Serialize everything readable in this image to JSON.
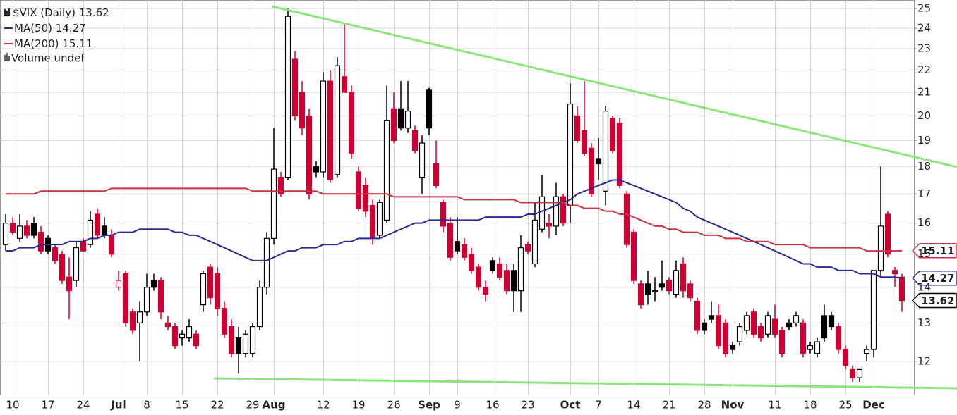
{
  "chart_data": {
    "type": "candlestick",
    "title": "$VIX (Daily)",
    "categories": [
      null,
      "10",
      null,
      null,
      null,
      null,
      "17",
      null,
      null,
      null,
      null,
      "24",
      null,
      null,
      null,
      null,
      "Jul",
      null,
      null,
      null,
      "8",
      null,
      null,
      null,
      null,
      "15",
      null,
      null,
      null,
      null,
      "22",
      null,
      null,
      null,
      null,
      "29",
      null,
      null,
      "Aug",
      null,
      null,
      null,
      null,
      null,
      null,
      "12",
      null,
      null,
      null,
      null,
      "19",
      null,
      null,
      null,
      null,
      "26",
      null,
      null,
      null,
      null,
      "Sep",
      null,
      null,
      null,
      "9",
      null,
      null,
      null,
      null,
      "16",
      null,
      null,
      null,
      null,
      "23",
      null,
      null,
      null,
      null,
      null,
      "Oct",
      null,
      null,
      null,
      "7",
      null,
      null,
      null,
      null,
      "14",
      null,
      null,
      null,
      null,
      "21",
      null,
      null,
      null,
      null,
      "28",
      null,
      null,
      null,
      "Nov",
      null,
      null,
      null,
      null,
      null,
      "11",
      null,
      null,
      null,
      null,
      "18",
      null,
      null,
      null,
      null,
      "25",
      null,
      null,
      null,
      "Dec",
      null,
      null,
      null,
      null
    ],
    "open": [
      15.3,
      16.0,
      15.5,
      15.9,
      16.0,
      15.7,
      15.5,
      15.2,
      15.0,
      14.3,
      14.2,
      15.4,
      15.3,
      16.3,
      15.9,
      15.6,
      14.0,
      14.4,
      13.3,
      13.0,
      13.3,
      14.2,
      14.2,
      13.0,
      12.9,
      12.6,
      12.6,
      12.7,
      13.5,
      14.6,
      14.4,
      13.4,
      12.9,
      12.6,
      12.2,
      12.2,
      12.9,
      14.0,
      15.5,
      17.6,
      17.6,
      22.5,
      21.0,
      20.0,
      18.0,
      17.8,
      21.5,
      17.7,
      21.7,
      21.0,
      17.8,
      17.3,
      16.6,
      15.6,
      16.1,
      20.3,
      20.3,
      19.5,
      19.4,
      17.6,
      21.1,
      18.1,
      16.7,
      16.0,
      15.4,
      15.3,
      15.0,
      14.6,
      14.0,
      14.8,
      14.7,
      14.5,
      14.5,
      13.9,
      15.3,
      14.7,
      15.8,
      16.0,
      15.9,
      16.9,
      16.6,
      20.0,
      19.4,
      18.7,
      18.3,
      17.1,
      19.9,
      19.7,
      17.0,
      15.7,
      14.1,
      14.1,
      13.9,
      14.1,
      14.2,
      13.8,
      14.7,
      14.1,
      13.6,
      13.0,
      13.2,
      13.2,
      13.0,
      12.4,
      12.5,
      12.8,
      13.3,
      12.9,
      12.7,
      13.1,
      12.8,
      13.0,
      13.0,
      13.0,
      12.3,
      12.2,
      13.2,
      13.2,
      12.9,
      12.3,
      11.8,
      11.6,
      12.2,
      12.3,
      14.5,
      16.3,
      14.5,
      14.3
    ],
    "high": [
      16.3,
      16.2,
      16.3,
      16.1,
      16.2,
      15.9,
      15.6,
      15.3,
      15.1,
      14.9,
      15.4,
      15.5,
      16.4,
      16.5,
      16.2,
      15.8,
      14.5,
      14.5,
      13.4,
      13.6,
      14.4,
      14.4,
      14.3,
      13.2,
      13.0,
      12.8,
      13.1,
      12.8,
      14.5,
      14.7,
      14.6,
      13.6,
      13.1,
      12.9,
      12.8,
      13.0,
      14.2,
      15.7,
      19.5,
      17.8,
      25.0,
      22.9,
      21.5,
      20.3,
      18.2,
      21.9,
      22.0,
      22.6,
      24.2,
      21.3,
      18.0,
      17.6,
      16.8,
      16.8,
      21.3,
      21.0,
      21.5,
      21.5,
      19.6,
      19.2,
      21.2,
      19.0,
      16.8,
      16.2,
      16.2,
      15.5,
      15.2,
      14.7,
      14.2,
      14.9,
      14.9,
      14.7,
      14.7,
      15.6,
      15.4,
      16.7,
      17.7,
      16.3,
      17.4,
      17.0,
      21.4,
      20.4,
      21.5,
      18.9,
      19.1,
      20.4,
      20.0,
      19.9,
      17.1,
      15.8,
      14.2,
      14.5,
      14.3,
      14.8,
      14.3,
      14.8,
      14.9,
      14.2,
      13.7,
      13.1,
      13.6,
      13.5,
      13.1,
      12.5,
      13.0,
      13.3,
      13.4,
      13.0,
      13.3,
      13.5,
      12.9,
      13.1,
      13.3,
      13.1,
      12.5,
      12.6,
      13.5,
      13.3,
      13.0,
      12.4,
      11.9,
      11.8,
      12.4,
      14.5,
      18.0,
      16.4,
      14.6,
      14.4
    ],
    "low": [
      15.1,
      15.6,
      15.4,
      15.5,
      15.5,
      15.0,
      15.0,
      14.7,
      14.1,
      13.1,
      14.0,
      15.1,
      15.2,
      15.5,
      15.5,
      14.9,
      13.9,
      12.9,
      12.7,
      12.0,
      13.2,
      13.9,
      13.1,
      12.8,
      12.3,
      12.4,
      12.5,
      12.3,
      13.3,
      13.5,
      13.2,
      12.6,
      12.1,
      11.7,
      12.1,
      12.1,
      12.8,
      13.8,
      15.3,
      16.9,
      17.5,
      19.8,
      19.2,
      16.8,
      17.6,
      17.6,
      17.4,
      17.6,
      21.0,
      18.3,
      16.4,
      16.2,
      15.3,
      15.5,
      16.0,
      18.9,
      19.4,
      19.3,
      18.5,
      17.0,
      19.2,
      17.2,
      15.7,
      14.8,
      15.0,
      14.8,
      14.4,
      13.9,
      13.6,
      14.4,
      14.2,
      13.8,
      13.3,
      13.3,
      15.0,
      14.6,
      15.7,
      15.5,
      15.6,
      15.9,
      16.0,
      18.9,
      18.4,
      16.9,
      17.5,
      16.6,
      18.5,
      17.2,
      15.2,
      14.1,
      13.4,
      13.5,
      13.6,
      13.9,
      13.8,
      13.7,
      13.7,
      13.6,
      12.7,
      12.7,
      13.0,
      12.3,
      12.1,
      12.2,
      12.4,
      12.7,
      12.6,
      12.5,
      12.6,
      12.6,
      12.1,
      12.8,
      12.9,
      12.1,
      12.2,
      12.1,
      12.5,
      12.8,
      12.2,
      11.8,
      11.5,
      11.5,
      12.0,
      12.1,
      14.3,
      14.9,
      14.0,
      13.3
    ],
    "close": [
      16.0,
      15.7,
      15.9,
      15.6,
      15.6,
      15.1,
      15.1,
      14.8,
      14.2,
      13.9,
      15.2,
      15.1,
      16.1,
      15.6,
      15.6,
      15.0,
      14.2,
      13.0,
      12.8,
      13.3,
      14.0,
      14.0,
      13.3,
      12.9,
      12.4,
      12.7,
      12.9,
      12.4,
      14.4,
      13.7,
      13.4,
      12.7,
      12.2,
      12.2,
      12.7,
      12.9,
      14.0,
      15.5,
      17.9,
      17.0,
      24.6,
      20.0,
      19.5,
      17.0,
      17.8,
      21.5,
      17.5,
      22.2,
      21.0,
      18.5,
      16.5,
      16.4,
      15.5,
      16.7,
      19.8,
      19.0,
      19.5,
      20.2,
      18.6,
      18.9,
      19.5,
      17.3,
      15.9,
      14.9,
      15.1,
      14.9,
      14.5,
      14.0,
      13.8,
      14.5,
      14.3,
      13.9,
      13.9,
      15.2,
      15.1,
      16.1,
      16.9,
      15.9,
      16.9,
      16.0,
      20.5,
      19.0,
      18.5,
      17.0,
      18.1,
      20.2,
      18.6,
      17.3,
      15.3,
      14.2,
      13.5,
      13.8,
      13.9,
      14.0,
      13.9,
      14.5,
      13.9,
      13.7,
      12.8,
      12.8,
      13.1,
      12.4,
      12.2,
      12.3,
      12.9,
      13.2,
      12.7,
      12.6,
      13.2,
      12.7,
      12.2,
      12.9,
      13.2,
      12.2,
      12.4,
      12.5,
      12.6,
      12.9,
      12.3,
      11.9,
      11.6,
      11.8,
      12.3,
      14.5,
      15.9,
      15.0,
      14.4,
      13.62
    ],
    "up_color": "#000000",
    "down_color": "#cc0033",
    "series": [
      {
        "name": "MA(50)",
        "color": "#2b2b8f",
        "values": [
          15.1,
          15.1,
          15.2,
          15.2,
          15.2,
          15.3,
          15.3,
          15.3,
          15.3,
          15.4,
          15.4,
          15.4,
          15.5,
          15.5,
          15.6,
          15.6,
          15.7,
          15.7,
          15.7,
          15.8,
          15.8,
          15.8,
          15.8,
          15.8,
          15.7,
          15.7,
          15.6,
          15.6,
          15.5,
          15.4,
          15.3,
          15.2,
          15.1,
          15.0,
          14.9,
          14.8,
          14.8,
          14.8,
          14.9,
          15.0,
          15.1,
          15.1,
          15.2,
          15.2,
          15.2,
          15.3,
          15.3,
          15.3,
          15.4,
          15.4,
          15.5,
          15.5,
          15.5,
          15.5,
          15.6,
          15.7,
          15.8,
          15.9,
          16.0,
          16.0,
          16.1,
          16.1,
          16.1,
          16.1,
          16.1,
          16.1,
          16.1,
          16.1,
          16.2,
          16.2,
          16.2,
          16.2,
          16.2,
          16.2,
          16.3,
          16.3,
          16.4,
          16.5,
          16.6,
          16.7,
          16.8,
          17.0,
          17.1,
          17.2,
          17.3,
          17.4,
          17.5,
          17.5,
          17.4,
          17.3,
          17.2,
          17.1,
          17.0,
          16.9,
          16.8,
          16.7,
          16.5,
          16.4,
          16.2,
          16.1,
          16.0,
          15.9,
          15.8,
          15.7,
          15.6,
          15.5,
          15.4,
          15.3,
          15.2,
          15.1,
          15.0,
          14.9,
          14.8,
          14.7,
          14.7,
          14.6,
          14.6,
          14.6,
          14.5,
          14.5,
          14.5,
          14.4,
          14.4,
          14.4,
          14.3,
          14.3,
          14.3,
          14.27
        ]
      },
      {
        "name": "MA(200)",
        "color": "#cc3344",
        "values": [
          17.0,
          17.0,
          17.0,
          17.0,
          17.0,
          17.1,
          17.1,
          17.1,
          17.1,
          17.1,
          17.1,
          17.1,
          17.1,
          17.1,
          17.1,
          17.2,
          17.2,
          17.2,
          17.2,
          17.2,
          17.2,
          17.2,
          17.2,
          17.2,
          17.2,
          17.2,
          17.2,
          17.2,
          17.2,
          17.2,
          17.2,
          17.2,
          17.2,
          17.2,
          17.2,
          17.1,
          17.1,
          17.1,
          17.1,
          17.1,
          17.1,
          17.1,
          17.1,
          17.1,
          17.1,
          17.0,
          17.0,
          17.0,
          17.0,
          17.0,
          17.0,
          17.0,
          17.0,
          17.0,
          17.0,
          16.9,
          16.9,
          16.9,
          16.9,
          16.9,
          16.9,
          16.9,
          16.9,
          16.9,
          16.9,
          16.8,
          16.8,
          16.8,
          16.8,
          16.8,
          16.8,
          16.8,
          16.8,
          16.7,
          16.7,
          16.7,
          16.7,
          16.7,
          16.7,
          16.7,
          16.6,
          16.6,
          16.5,
          16.5,
          16.5,
          16.4,
          16.4,
          16.3,
          16.3,
          16.2,
          16.1,
          16.0,
          15.9,
          15.9,
          15.8,
          15.8,
          15.7,
          15.7,
          15.7,
          15.6,
          15.6,
          15.6,
          15.5,
          15.5,
          15.5,
          15.4,
          15.4,
          15.4,
          15.4,
          15.3,
          15.3,
          15.3,
          15.3,
          15.3,
          15.2,
          15.2,
          15.2,
          15.2,
          15.2,
          15.2,
          15.2,
          15.2,
          15.1,
          15.1,
          15.1,
          15.1,
          15.1,
          15.11
        ]
      }
    ],
    "volume_label": "Volume undef",
    "ylim": [
      11.2,
      25.45
    ],
    "yticks": [
      12,
      13,
      14,
      15,
      16,
      17,
      18,
      19,
      20,
      21,
      22,
      23,
      24,
      25
    ],
    "log_scale": true,
    "grid": true
  }
}
